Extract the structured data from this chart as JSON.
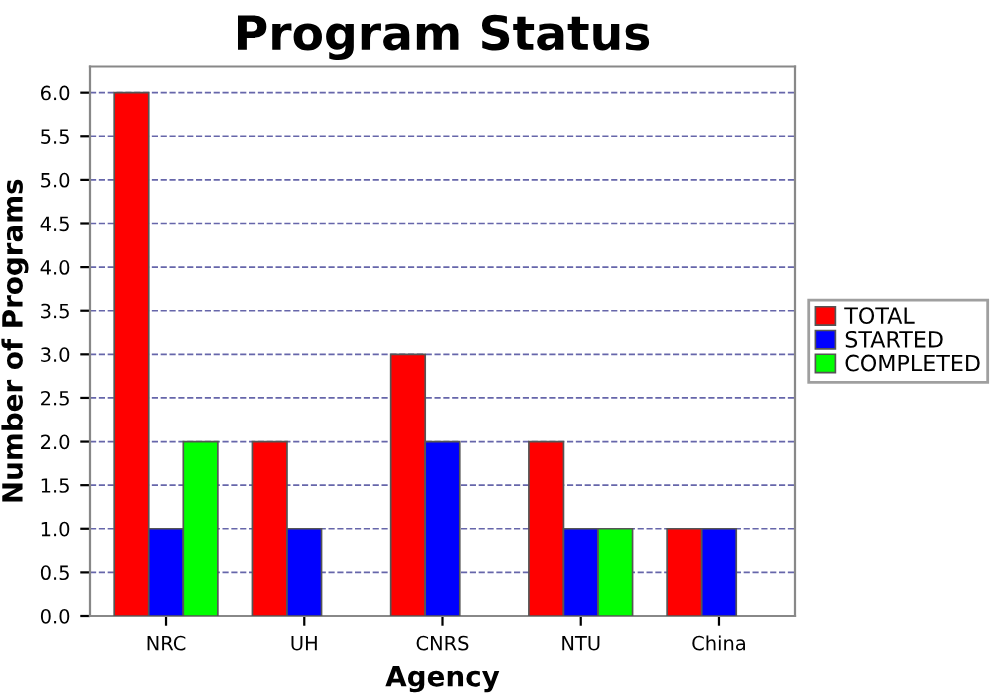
{
  "chart_data": {
    "type": "bar",
    "title": "Program Status",
    "xlabel": "Agency",
    "ylabel": "Number of Programs",
    "categories": [
      "NRC",
      "UH",
      "CNRS",
      "NTU",
      "China"
    ],
    "series": [
      {
        "name": "TOTAL",
        "color": "#ff0000",
        "values": [
          6,
          2,
          3,
          2,
          1
        ]
      },
      {
        "name": "STARTED",
        "color": "#0000ff",
        "values": [
          1,
          1,
          2,
          1,
          1
        ]
      },
      {
        "name": "COMPLETED",
        "color": "#00ff00",
        "values": [
          2,
          null,
          null,
          1,
          null
        ]
      }
    ],
    "ylim": [
      0,
      6.3
    ],
    "yticks": [
      {
        "value": 0,
        "label": "0.0"
      },
      {
        "value": 0.5,
        "label": "0.5"
      },
      {
        "value": 1,
        "label": "1.0"
      },
      {
        "value": 1.5,
        "label": "1.5"
      },
      {
        "value": 2,
        "label": "2.0"
      },
      {
        "value": 2.5,
        "label": "2.5"
      },
      {
        "value": 3,
        "label": "3.0"
      },
      {
        "value": 3.5,
        "label": "3.5"
      },
      {
        "value": 4,
        "label": "4.0"
      },
      {
        "value": 4.5,
        "label": "4.5"
      },
      {
        "value": 5,
        "label": "5.0"
      },
      {
        "value": 5.5,
        "label": "5.5"
      },
      {
        "value": 6,
        "label": "6.0"
      }
    ],
    "grid": "y",
    "legend": "right"
  }
}
